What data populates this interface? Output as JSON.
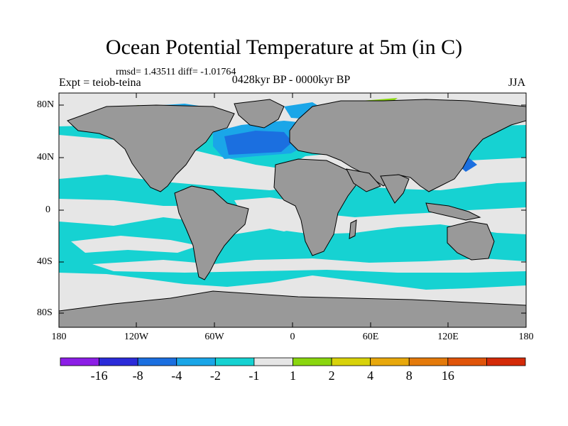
{
  "title": "Ocean Potential Temperature at 5m (in C)",
  "stats": "rmsd= 1.43511 diff= -1.01764",
  "experiment": "Expt = teiob-teina",
  "period": "0428kyr BP - 0000kyr BP",
  "season": "JJA",
  "y_ticks": [
    "80N",
    "40N",
    "0",
    "40S",
    "80S"
  ],
  "x_ticks": [
    "180",
    "120W",
    "60W",
    "0",
    "60E",
    "120E",
    "180"
  ],
  "colorbar": {
    "colors": [
      "#8c1ee6",
      "#2b2bd9",
      "#1b6fe0",
      "#1aa6e8",
      "#16d2d2",
      "#e6e6e6",
      "#8ad60f",
      "#d8d20a",
      "#e8a80c",
      "#e47a0b",
      "#e0540a",
      "#d42a08"
    ],
    "labels": [
      "-16",
      "-8",
      "-4",
      "-2",
      "-1",
      "1",
      "2",
      "4",
      "8",
      "16"
    ]
  },
  "map_colors": {
    "land": "#999999",
    "ocean_neutral": "#e6e6e6",
    "cyan": "#16d2d2",
    "sky": "#1aa6e8",
    "blue": "#1b6fe0",
    "green": "#8ad60f",
    "orange": "#e8a80c"
  }
}
